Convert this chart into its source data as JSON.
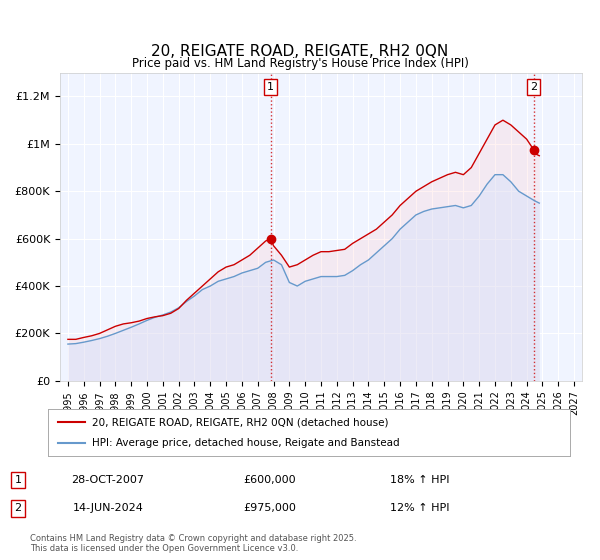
{
  "title": "20, REIGATE ROAD, REIGATE, RH2 0QN",
  "subtitle": "Price paid vs. HM Land Registry's House Price Index (HPI)",
  "title_fontsize": 11,
  "subtitle_fontsize": 9,
  "bg_color": "#ffffff",
  "plot_bg_color": "#f0f4ff",
  "grid_color": "#ffffff",
  "xlim": [
    1994.5,
    2027.5
  ],
  "ylim": [
    0,
    1300000
  ],
  "yticks": [
    0,
    200000,
    400000,
    600000,
    800000,
    1000000,
    1200000
  ],
  "ytick_labels": [
    "£0",
    "£200K",
    "£400K",
    "£600K",
    "£800K",
    "£1M",
    "£1.2M"
  ],
  "xticks": [
    1995,
    1996,
    1997,
    1998,
    1999,
    2000,
    2001,
    2002,
    2003,
    2004,
    2005,
    2006,
    2007,
    2008,
    2009,
    2010,
    2011,
    2012,
    2013,
    2014,
    2015,
    2016,
    2017,
    2018,
    2019,
    2020,
    2021,
    2022,
    2023,
    2024,
    2025,
    2026,
    2027
  ],
  "red_line_color": "#cc0000",
  "blue_line_color": "#6699cc",
  "red_fill_color": "#ffcccc",
  "blue_fill_color": "#cce0ff",
  "marker1_x": 2007.82,
  "marker1_y": 600000,
  "marker2_x": 2024.45,
  "marker2_y": 975000,
  "vline1_x": 2007.82,
  "vline2_x": 2024.45,
  "legend_label_red": "20, REIGATE ROAD, REIGATE, RH2 0QN (detached house)",
  "legend_label_blue": "HPI: Average price, detached house, Reigate and Banstead",
  "annotation1_label": "1",
  "annotation2_label": "2",
  "annotation1_date": "28-OCT-2007",
  "annotation1_price": "£600,000",
  "annotation1_hpi": "18% ↑ HPI",
  "annotation2_date": "14-JUN-2024",
  "annotation2_price": "£975,000",
  "annotation2_hpi": "12% ↑ HPI",
  "footer": "Contains HM Land Registry data © Crown copyright and database right 2025.\nThis data is licensed under the Open Government Licence v3.0.",
  "red_data_x": [
    1995.0,
    1995.5,
    1996.0,
    1996.5,
    1997.0,
    1997.5,
    1998.0,
    1998.5,
    1999.0,
    1999.5,
    2000.0,
    2000.5,
    2001.0,
    2001.5,
    2002.0,
    2002.5,
    2003.0,
    2003.5,
    2004.0,
    2004.5,
    2005.0,
    2005.5,
    2006.0,
    2006.5,
    2007.0,
    2007.5,
    2007.82,
    2008.0,
    2008.5,
    2009.0,
    2009.5,
    2010.0,
    2010.5,
    2011.0,
    2011.5,
    2012.0,
    2012.5,
    2013.0,
    2013.5,
    2014.0,
    2014.5,
    2015.0,
    2015.5,
    2016.0,
    2016.5,
    2017.0,
    2017.5,
    2018.0,
    2018.5,
    2019.0,
    2019.5,
    2020.0,
    2020.5,
    2021.0,
    2021.5,
    2022.0,
    2022.5,
    2023.0,
    2023.5,
    2024.0,
    2024.45,
    2024.5,
    2024.8
  ],
  "red_data_y": [
    175000,
    175000,
    183000,
    190000,
    200000,
    215000,
    230000,
    240000,
    245000,
    252000,
    263000,
    270000,
    275000,
    285000,
    305000,
    340000,
    370000,
    400000,
    430000,
    460000,
    480000,
    490000,
    510000,
    530000,
    560000,
    590000,
    600000,
    570000,
    530000,
    480000,
    490000,
    510000,
    530000,
    545000,
    545000,
    550000,
    555000,
    580000,
    600000,
    620000,
    640000,
    670000,
    700000,
    740000,
    770000,
    800000,
    820000,
    840000,
    855000,
    870000,
    880000,
    870000,
    900000,
    960000,
    1020000,
    1080000,
    1100000,
    1080000,
    1050000,
    1020000,
    975000,
    960000,
    950000
  ],
  "blue_data_x": [
    1995.0,
    1995.5,
    1996.0,
    1996.5,
    1997.0,
    1997.5,
    1998.0,
    1998.5,
    1999.0,
    1999.5,
    2000.0,
    2000.5,
    2001.0,
    2001.5,
    2002.0,
    2002.5,
    2003.0,
    2003.5,
    2004.0,
    2004.5,
    2005.0,
    2005.5,
    2006.0,
    2006.5,
    2007.0,
    2007.5,
    2008.0,
    2008.5,
    2009.0,
    2009.5,
    2010.0,
    2010.5,
    2011.0,
    2011.5,
    2012.0,
    2012.5,
    2013.0,
    2013.5,
    2014.0,
    2014.5,
    2015.0,
    2015.5,
    2016.0,
    2016.5,
    2017.0,
    2017.5,
    2018.0,
    2018.5,
    2019.0,
    2019.5,
    2020.0,
    2020.5,
    2021.0,
    2021.5,
    2022.0,
    2022.5,
    2023.0,
    2023.5,
    2024.0,
    2024.5,
    2024.8
  ],
  "blue_data_y": [
    155000,
    157000,
    163000,
    170000,
    178000,
    188000,
    200000,
    213000,
    226000,
    240000,
    255000,
    268000,
    278000,
    290000,
    308000,
    335000,
    358000,
    385000,
    400000,
    420000,
    430000,
    440000,
    455000,
    465000,
    475000,
    500000,
    510000,
    490000,
    415000,
    400000,
    420000,
    430000,
    440000,
    440000,
    440000,
    445000,
    465000,
    490000,
    510000,
    540000,
    570000,
    600000,
    640000,
    670000,
    700000,
    715000,
    725000,
    730000,
    735000,
    740000,
    730000,
    740000,
    780000,
    830000,
    870000,
    870000,
    840000,
    800000,
    780000,
    760000,
    750000
  ]
}
